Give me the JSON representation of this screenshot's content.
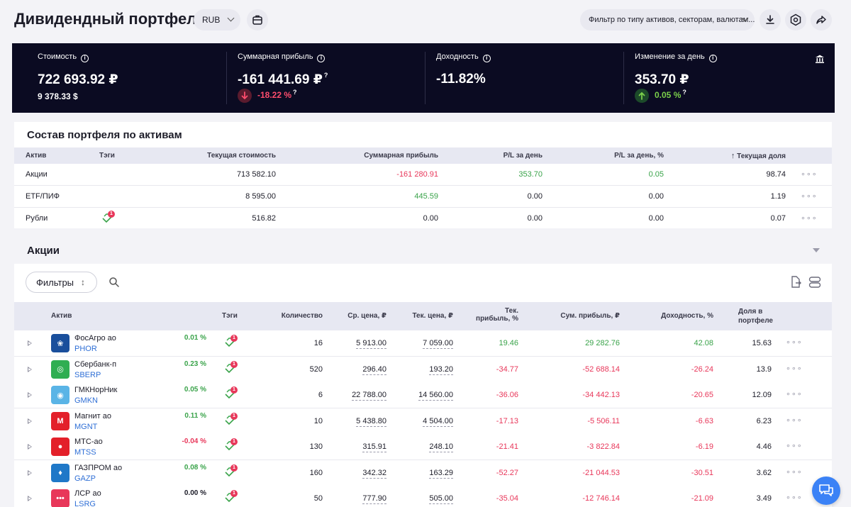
{
  "header": {
    "title": "Дивидендный портфель",
    "currency": "RUB",
    "filter_placeholder": "Фильтр по типу активов, секторам, валютам..."
  },
  "summary": {
    "cost": {
      "label": "Стоимость",
      "value": "722 693.92 ₽",
      "sub": "9 378.33 $"
    },
    "profit": {
      "label": "Суммарная прибыль",
      "value": "-161 441.69 ₽",
      "sub": "-18.22 %"
    },
    "yield": {
      "label": "Доходность",
      "value": "-11.82%"
    },
    "day_change": {
      "label": "Изменение за день",
      "value": "353.70 ₽",
      "sub": "0.05 %"
    },
    "q_mark": "?",
    "info_mark": "i"
  },
  "composition": {
    "title": "Состав портфеля по активам",
    "headers": [
      "Актив",
      "Тэги",
      "Текущая стоимость",
      "Суммарная прибыль",
      "P/L за день",
      "P/L за день, %",
      "Текущая доля"
    ],
    "rows": [
      {
        "asset": "Акции",
        "value": "713 582.10",
        "profit": "-161 280.91",
        "pl_day": "353.70",
        "pl_day_pct": "0.05",
        "share": "98.74",
        "tag": false
      },
      {
        "asset": "ETF/ПИФ",
        "value": "8 595.00",
        "profit": "445.59",
        "pl_day": "0.00",
        "pl_day_pct": "0.00",
        "share": "1.19",
        "tag": false
      },
      {
        "asset": "Рубли",
        "value": "516.82",
        "profit": "0.00",
        "pl_day": "0.00",
        "pl_day_pct": "0.00",
        "share": "0.07",
        "tag": true
      }
    ]
  },
  "stocks": {
    "title": "Акции",
    "filters_label": "Фильтры",
    "headers": {
      "asset": "Актив",
      "tags": "Тэги",
      "qty": "Количество",
      "avg_price": "Ср. цена, ₽",
      "cur_price": "Тек. цена, ₽",
      "cur_profit_1": "Тек.",
      "cur_profit_2": "прибыль, %",
      "sum_profit": "Сум. прибыль, ₽",
      "yield": "Доходность, %",
      "share_1": "Доля в",
      "share_2": "портфеле"
    },
    "rows": [
      {
        "name": "ФосАгро ао",
        "ticker": "PHOR",
        "day": "0.01 %",
        "day_color": "#3aa34a",
        "qty": "16",
        "avg": "5 913.00",
        "cur": "7 059.00",
        "cur_profit": "19.46",
        "sum_profit": "29 282.76",
        "yield": "42.08",
        "share": "15.63",
        "logo_color": "#1a4f9c",
        "logo_char": "❀",
        "pos": true
      },
      {
        "name": "Сбербанк-п",
        "ticker": "SBERP",
        "day": "0.23 %",
        "day_color": "#3aa34a",
        "qty": "520",
        "avg": "296.40",
        "cur": "193.20",
        "cur_profit": "-34.77",
        "sum_profit": "-52 688.14",
        "yield": "-26.24",
        "share": "13.9",
        "logo_color": "#2fae52",
        "logo_char": "◎",
        "pos": false
      },
      {
        "name": "ГМКНорНик",
        "ticker": "GMKN",
        "day": "0.05 %",
        "day_color": "#3aa34a",
        "qty": "6",
        "avg": "22 788.00",
        "cur": "14 560.00",
        "cur_profit": "-36.06",
        "sum_profit": "-34 442.13",
        "yield": "-20.65",
        "share": "12.09",
        "logo_color": "#5ab4e6",
        "logo_char": "◉",
        "pos": false
      },
      {
        "name": "Магнит ао",
        "ticker": "MGNT",
        "day": "0.11 %",
        "day_color": "#3aa34a",
        "qty": "10",
        "avg": "5 438.80",
        "cur": "4 504.00",
        "cur_profit": "-17.13",
        "sum_profit": "-5 506.11",
        "yield": "-6.63",
        "share": "6.23",
        "logo_color": "#e3202a",
        "logo_char": "M",
        "pos": false
      },
      {
        "name": "МТС-ао",
        "ticker": "MTSS",
        "day": "-0.04 %",
        "day_color": "#e8375a",
        "qty": "130",
        "avg": "315.91",
        "cur": "248.10",
        "cur_profit": "-21.41",
        "sum_profit": "-3 822.84",
        "yield": "-6.19",
        "share": "4.46",
        "logo_color": "#e3202a",
        "logo_char": "●",
        "pos": false
      },
      {
        "name": "ГАЗПРОМ ао",
        "ticker": "GAZP",
        "day": "0.08 %",
        "day_color": "#3aa34a",
        "qty": "160",
        "avg": "342.32",
        "cur": "163.29",
        "cur_profit": "-52.27",
        "sum_profit": "-21 044.53",
        "yield": "-30.51",
        "share": "3.62",
        "logo_color": "#1f78c8",
        "logo_char": "♦",
        "pos": false
      },
      {
        "name": "ЛСР ао",
        "ticker": "LSRG",
        "day": "0.00 %",
        "day_color": "#1c1c28",
        "qty": "50",
        "avg": "777.90",
        "cur": "505.00",
        "cur_profit": "-35.04",
        "sum_profit": "-12 746.14",
        "yield": "-21.09",
        "share": "3.49",
        "logo_color": "#e8375a",
        "logo_char": "•••",
        "pos": false
      }
    ]
  },
  "tag_badge_count": "1",
  "colors": {
    "negative": "#e8375a",
    "positive": "#3aa34a",
    "banner": "#0b0b22",
    "link": "#2f6fd6"
  }
}
